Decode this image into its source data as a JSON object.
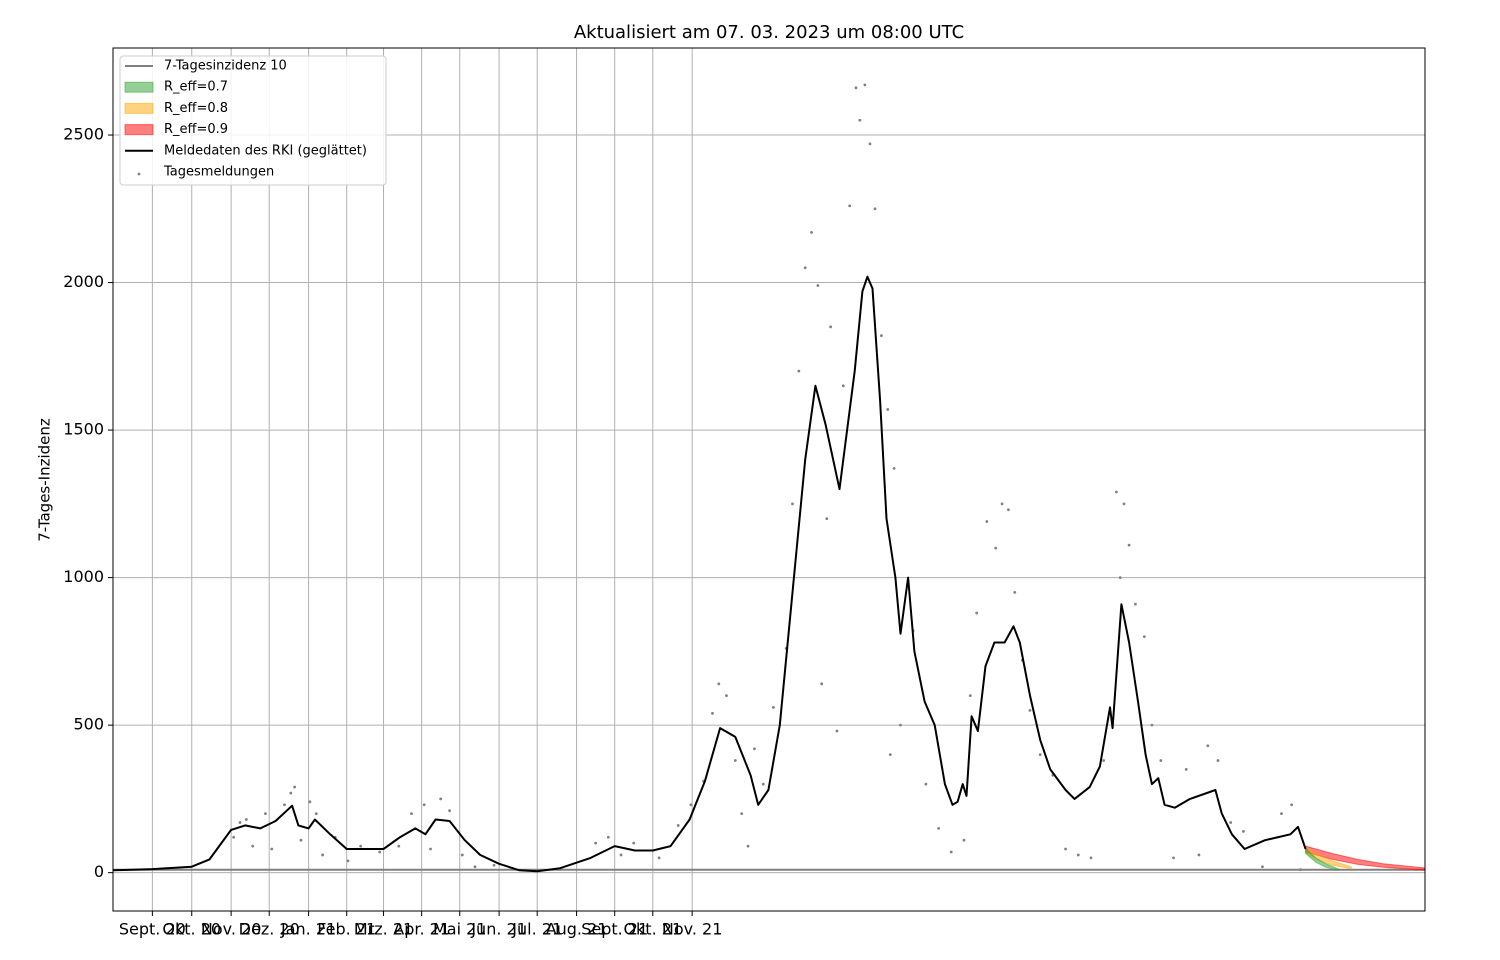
{
  "chart_data": {
    "type": "line",
    "title": "Aktualisiert am 07. 03. 2023 um 08:00 UTC",
    "y_label": "7-Tages-Inzidenz",
    "xlim": [
      0,
      1033
    ],
    "xticks": [
      {
        "value": 31,
        "label": "Sept. 20"
      },
      {
        "value": 62,
        "label": "Okt. 20"
      },
      {
        "value": 93,
        "label": "Nov. 20"
      },
      {
        "value": 123,
        "label": "Dez. 20"
      },
      {
        "value": 154,
        "label": "Jan. 21"
      },
      {
        "value": 184,
        "label": "Feb. 21"
      },
      {
        "value": 213,
        "label": "Mrz. 21"
      },
      {
        "value": 243,
        "label": "Apr. 21"
      },
      {
        "value": 273,
        "label": "Mai 21"
      },
      {
        "value": 304,
        "label": "Jun. 21"
      },
      {
        "value": 334,
        "label": "Jul. 21"
      },
      {
        "value": 365,
        "label": "Aug. 21"
      },
      {
        "value": 395,
        "label": "Sept. 21"
      },
      {
        "value": 425,
        "label": "Okt. 21"
      },
      {
        "value": 456,
        "label": "Nov. 21"
      }
    ],
    "ylim": [
      -130,
      2795
    ],
    "yticks": [
      0,
      500,
      1000,
      1500,
      2000,
      2500
    ],
    "grid": true,
    "legend": "upper left",
    "reference": {
      "name": "7-Tagesinzidenz 10",
      "value": 10,
      "color": "#808080"
    },
    "bands": [
      {
        "name": "R_eff=0.7",
        "color": "#2ca02c",
        "x": [
          939,
          947,
          955,
          965
        ],
        "lower": [
          65,
          35,
          18,
          8
        ],
        "upper": [
          82,
          50,
          30,
          12
        ]
      },
      {
        "name": "R_eff=0.8",
        "color": "#ffa500",
        "x": [
          939,
          950,
          960,
          975
        ],
        "lower": [
          68,
          40,
          25,
          14
        ],
        "upper": [
          85,
          58,
          40,
          20
        ]
      },
      {
        "name": "R_eff=0.9",
        "color": "#ff0000",
        "x": [
          939,
          960,
          980,
          1000,
          1033
        ],
        "lower": [
          70,
          45,
          28,
          18,
          8
        ],
        "upper": [
          90,
          65,
          45,
          30,
          16
        ]
      }
    ],
    "series": [
      {
        "name": "Meldedaten des RKI (geglättet)",
        "color": "#000000",
        "x": [
          0,
          31,
          62,
          76,
          93,
          104,
          116,
          128,
          141,
          146,
          154,
          159,
          171,
          184,
          213,
          226,
          238,
          246,
          254,
          265,
          277,
          289,
          304,
          320,
          334,
          352,
          376,
          395,
          411,
          425,
          439,
          454,
          466,
          478,
          490,
          502,
          508,
          516,
          525,
          535,
          545,
          553,
          561,
          572,
          584,
          590,
          594,
          598,
          604,
          609,
          616,
          620,
          626,
          631,
          639,
          647,
          655,
          661,
          665,
          669,
          672,
          676,
          681,
          687,
          694,
          702,
          709,
          714,
          722,
          730,
          738,
          750,
          757,
          769,
          777,
          785,
          787,
          794,
          800,
          807,
          813,
          818,
          823,
          828,
          836,
          848,
          868,
          873,
          881,
          891,
          907,
          927,
          933,
          939
        ],
        "values": [
          8,
          12,
          20,
          45,
          145,
          160,
          150,
          175,
          227,
          160,
          150,
          180,
          130,
          80,
          80,
          120,
          150,
          130,
          180,
          175,
          110,
          60,
          30,
          8,
          5,
          15,
          50,
          90,
          75,
          75,
          90,
          180,
          310,
          490,
          460,
          330,
          230,
          280,
          500,
          950,
          1400,
          1650,
          1520,
          1300,
          1700,
          1970,
          2020,
          1980,
          1600,
          1200,
          1000,
          810,
          1000,
          750,
          580,
          500,
          300,
          230,
          240,
          300,
          260,
          530,
          480,
          700,
          780,
          780,
          835,
          780,
          600,
          450,
          350,
          280,
          250,
          290,
          360,
          560,
          490,
          910,
          780,
          580,
          400,
          300,
          320,
          230,
          220,
          250,
          280,
          200,
          130,
          80,
          110,
          130,
          155,
          80
        ]
      }
    ],
    "scatter": {
      "name": "Tagesmeldungen",
      "color": "#808080",
      "x": [
        95,
        100,
        105,
        110,
        120,
        125,
        135,
        140,
        143,
        148,
        155,
        160,
        165,
        175,
        185,
        195,
        210,
        225,
        235,
        245,
        250,
        258,
        265,
        275,
        285,
        300,
        380,
        390,
        400,
        410,
        430,
        445,
        455,
        465,
        472,
        477,
        483,
        490,
        495,
        500,
        505,
        512,
        520,
        530,
        535,
        540,
        545,
        550,
        555,
        558,
        562,
        565,
        570,
        575,
        580,
        585,
        588,
        592,
        596,
        600,
        605,
        610,
        612,
        615,
        620,
        630,
        640,
        650,
        660,
        670,
        675,
        680,
        688,
        695,
        700,
        705,
        710,
        716,
        722,
        730,
        740,
        750,
        760,
        770,
        780,
        790,
        793,
        796,
        800,
        805,
        812,
        818,
        825,
        835,
        845,
        855,
        862,
        870,
        880,
        890,
        905,
        920,
        928,
        935
      ],
      "values": [
        120,
        170,
        180,
        90,
        200,
        80,
        230,
        270,
        290,
        110,
        240,
        200,
        60,
        120,
        40,
        90,
        70,
        90,
        200,
        230,
        80,
        250,
        210,
        60,
        20,
        25,
        100,
        120,
        60,
        100,
        50,
        160,
        230,
        310,
        540,
        640,
        600,
        380,
        200,
        90,
        420,
        300,
        560,
        760,
        1250,
        1700,
        2050,
        2170,
        1990,
        640,
        1200,
        1850,
        480,
        1650,
        2260,
        2660,
        2550,
        2670,
        2470,
        2250,
        1820,
        1570,
        400,
        1370,
        500,
        820,
        300,
        150,
        70,
        110,
        600,
        880,
        1190,
        1100,
        1250,
        1230,
        950,
        720,
        550,
        400,
        330,
        80,
        60,
        50,
        380,
        1290,
        1000,
        1250,
        1110,
        910,
        800,
        500,
        380,
        50,
        350,
        60,
        430,
        380,
        170,
        140,
        20,
        200,
        230,
        10
      ]
    }
  }
}
